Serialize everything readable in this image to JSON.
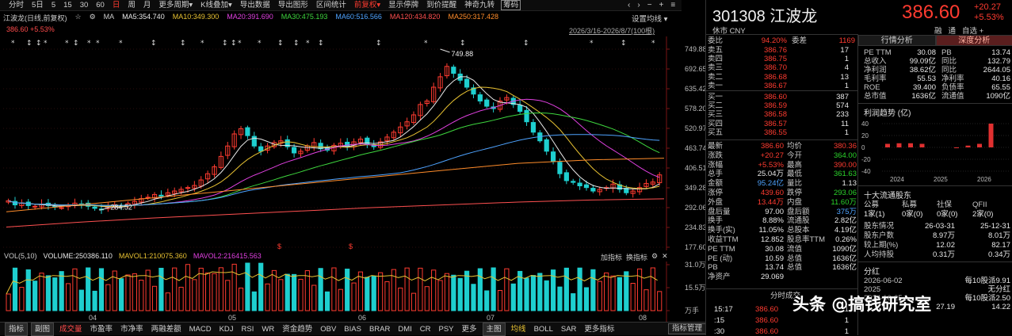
{
  "toolbar": {
    "items": [
      "分时",
      "5日",
      "5",
      "15",
      "30",
      "60",
      "日",
      "周",
      "月",
      "更多周期",
      "K线叠加",
      "导出数据",
      "导出图形",
      "区间统计",
      "前复权",
      "显示停牌",
      "到价提醒",
      "神奇九转",
      "筹码"
    ],
    "active_index": 6,
    "fq_index": 14,
    "boxed_index": 18,
    "dropdown_glyph": "▾",
    "icons": [
      "‹",
      "›",
      "−",
      "+",
      "≡"
    ]
  },
  "ma_line": {
    "title": "江波龙(日线,前复权)",
    "icons": [
      "☆",
      "⚙"
    ],
    "ma_label": "MA",
    "items": [
      {
        "text": "MA5:354.740",
        "color": "#e8e8e8"
      },
      {
        "text": "MA10:349.300",
        "color": "#e8c232"
      },
      {
        "text": "MA20:391.690",
        "color": "#e040e0"
      },
      {
        "text": "MA30:475.193",
        "color": "#3ed63e"
      },
      {
        "text": "MA60:516.566",
        "color": "#4ea3ff"
      },
      {
        "text": "MA120:434.820",
        "color": "#ff5050"
      },
      {
        "text": "MA250:317.428",
        "color": "#ff8c2a"
      }
    ]
  },
  "price_line": "386.60 +5.53%",
  "settings_label": "设置均线",
  "range_text": "2026/3/16-2026/8/7(100根)",
  "y_ticks": [
    "749.88",
    "692.65",
    "635.42",
    "578.20",
    "520.97",
    "463.74",
    "406.51",
    "349.28",
    "292.06",
    "234.83",
    "177.60"
  ],
  "x_ticks": [
    "04",
    "05",
    "06",
    "07",
    "08"
  ],
  "marks": {
    "high_label": "749.88",
    "low_label": "284.52",
    "dividend_mark": "$"
  },
  "volume": {
    "header_left": "VOL(5,10)",
    "items": [
      {
        "text": "VOLUME:250386.110",
        "color": "#e8e8e8"
      },
      {
        "text": "MAVOL1:210075.360",
        "color": "#e8c232"
      },
      {
        "text": "MAVOL2:216415.563",
        "color": "#e040e0"
      }
    ],
    "tools": [
      "加指标",
      "换指标",
      "⚙",
      "✕"
    ],
    "y_ticks": [
      "31.0万",
      "15.5万",
      "万手"
    ]
  },
  "bottombar": {
    "items": [
      "指标",
      "副图",
      "成交量",
      "市盈率",
      "市净率",
      "两融差额",
      "MACD",
      "KDJ",
      "RSI",
      "WR",
      "资金趋势",
      "OBV",
      "BIAS",
      "BRAR",
      "DMI",
      "CR",
      "PSY",
      "更多",
      "主图",
      "均线",
      "BOLL",
      "SAR",
      "更多指标"
    ],
    "boxed": [
      0,
      1,
      18
    ],
    "red_index": 2,
    "gold_index": 19,
    "mgr": "指标管理"
  },
  "quote": {
    "code_name": "301308 江波龙",
    "price": "386.60",
    "chg_abs": "+20.27",
    "chg_pct": "+5.53%",
    "currency": "休市 CNY",
    "top_buttons": [
      "融",
      "通",
      "自选 +"
    ],
    "wb": {
      "label1": "委比",
      "val1": "94.20%",
      "label2": "委差",
      "val2": "1169"
    },
    "asks": [
      {
        "label": "卖五",
        "price": "386.76",
        "vol": "17"
      },
      {
        "label": "卖四",
        "price": "386.75",
        "vol": "1"
      },
      {
        "label": "卖三",
        "price": "386.70",
        "vol": "4"
      },
      {
        "label": "卖二",
        "price": "386.68",
        "vol": "13"
      },
      {
        "label": "卖一",
        "price": "386.67",
        "vol": "1"
      }
    ],
    "bids": [
      {
        "label": "买一",
        "price": "386.60",
        "vol": "387"
      },
      {
        "label": "买二",
        "price": "386.59",
        "vol": "574"
      },
      {
        "label": "买三",
        "price": "386.58",
        "vol": "233"
      },
      {
        "label": "买四",
        "price": "386.57",
        "vol": "11"
      },
      {
        "label": "买五",
        "price": "386.55",
        "vol": "1"
      }
    ],
    "stats": [
      [
        "最新",
        "386.60",
        "red",
        "均价",
        "380.36",
        "red"
      ],
      [
        "涨跌",
        "+20.27",
        "red",
        "今开",
        "364.00",
        "green"
      ],
      [
        "涨幅",
        "+5.53%",
        "red",
        "最高",
        "390.00",
        "red"
      ],
      [
        "总手",
        "25.04万",
        "white",
        "最低",
        "361.63",
        "green"
      ],
      [
        "金额",
        "95.24亿",
        "blue",
        "量比",
        "1.13",
        "white"
      ],
      [
        "涨停",
        "439.60",
        "red",
        "跌停",
        "293.06",
        "green"
      ],
      [
        "外盘",
        "13.44万",
        "red",
        "内盘",
        "11.60万",
        "green"
      ],
      [
        "盘后量",
        "97.00",
        "white",
        "盘后额",
        "375万",
        "blue"
      ],
      [
        "换手",
        "8.88%",
        "white",
        "流通股",
        "2.82亿",
        "white"
      ],
      [
        "换手(实)",
        "11.05%",
        "white",
        "总股本",
        "4.19亿",
        "white"
      ],
      [
        "收益TTM",
        "12.852",
        "white",
        "股息率TTM",
        "0.26%",
        "white"
      ],
      [
        "PE TTM",
        "30.08",
        "white",
        "流值",
        "1090亿",
        "white"
      ],
      [
        "PE (动)",
        "10.59",
        "white",
        "总值",
        "1636亿",
        "white"
      ],
      [
        "PB",
        "13.74",
        "white",
        "总值",
        "1636亿",
        "white"
      ],
      [
        "净资产",
        "29.069",
        "white",
        "",
        "",
        ""
      ]
    ],
    "trades_header": "分时成交",
    "trades": [
      {
        "time": "15:17",
        "price": "386.60",
        "vol": "1"
      },
      {
        "time": ":15",
        "price": "386.60",
        "vol": "1"
      },
      {
        "time": ":30",
        "price": "386.60",
        "vol": "1"
      }
    ]
  },
  "fundamentals": {
    "tabs": [
      "行情分析",
      "深度分析"
    ],
    "rows": [
      [
        "PE TTM",
        "30.08",
        "PB",
        "13.74"
      ],
      [
        "总收入",
        "99.09亿",
        "同比",
        "132.79"
      ],
      [
        "净利润",
        "38.62亿",
        "同比",
        "2644.05"
      ],
      [
        "毛利率",
        "55.53",
        "净利率",
        "40.16"
      ],
      [
        "ROE",
        "39.400",
        "负债率",
        "65.55"
      ],
      [
        "总市值",
        "1636亿",
        "流通值",
        "1090亿"
      ]
    ],
    "profit_title": "利润趋势 (亿)",
    "profit_y": [
      "40",
      "20",
      "0",
      "-20",
      "-40"
    ],
    "profit_x": [
      "2024",
      "2025",
      "2026"
    ],
    "profit_values": [
      6,
      7,
      7,
      6,
      null,
      null,
      -1,
      3,
      6,
      40
    ],
    "holders_title": "十大流通股东",
    "holders_cols": [
      "公募",
      "私募",
      "社保",
      "QFII"
    ],
    "holders_vals": [
      "1家(1)",
      "0家(0)",
      "0家(0)",
      "2家(0)"
    ],
    "holders_rows": [
      [
        "股东情况",
        "26-03-31",
        "25-12-31"
      ],
      [
        "股东户数",
        "8.97万",
        "8.01万"
      ],
      [
        "较上期(%)",
        "12.02",
        "82.17"
      ],
      [
        "人均持股",
        "0.31万",
        "0.34万"
      ]
    ],
    "dividend_title": "分红",
    "dividend_rows": [
      [
        "2026-06-02",
        "每10股派9.91"
      ],
      [
        "2025",
        "无分红"
      ],
      [
        "2024-10-25",
        "每10股派2.50"
      ],
      [
        "",
        "27.19",
        "14.22"
      ]
    ]
  },
  "watermark": "头条 @搞钱研究室",
  "colors": {
    "up": "#ff3b30",
    "down": "#1ecfcf",
    "bg": "#000000"
  }
}
